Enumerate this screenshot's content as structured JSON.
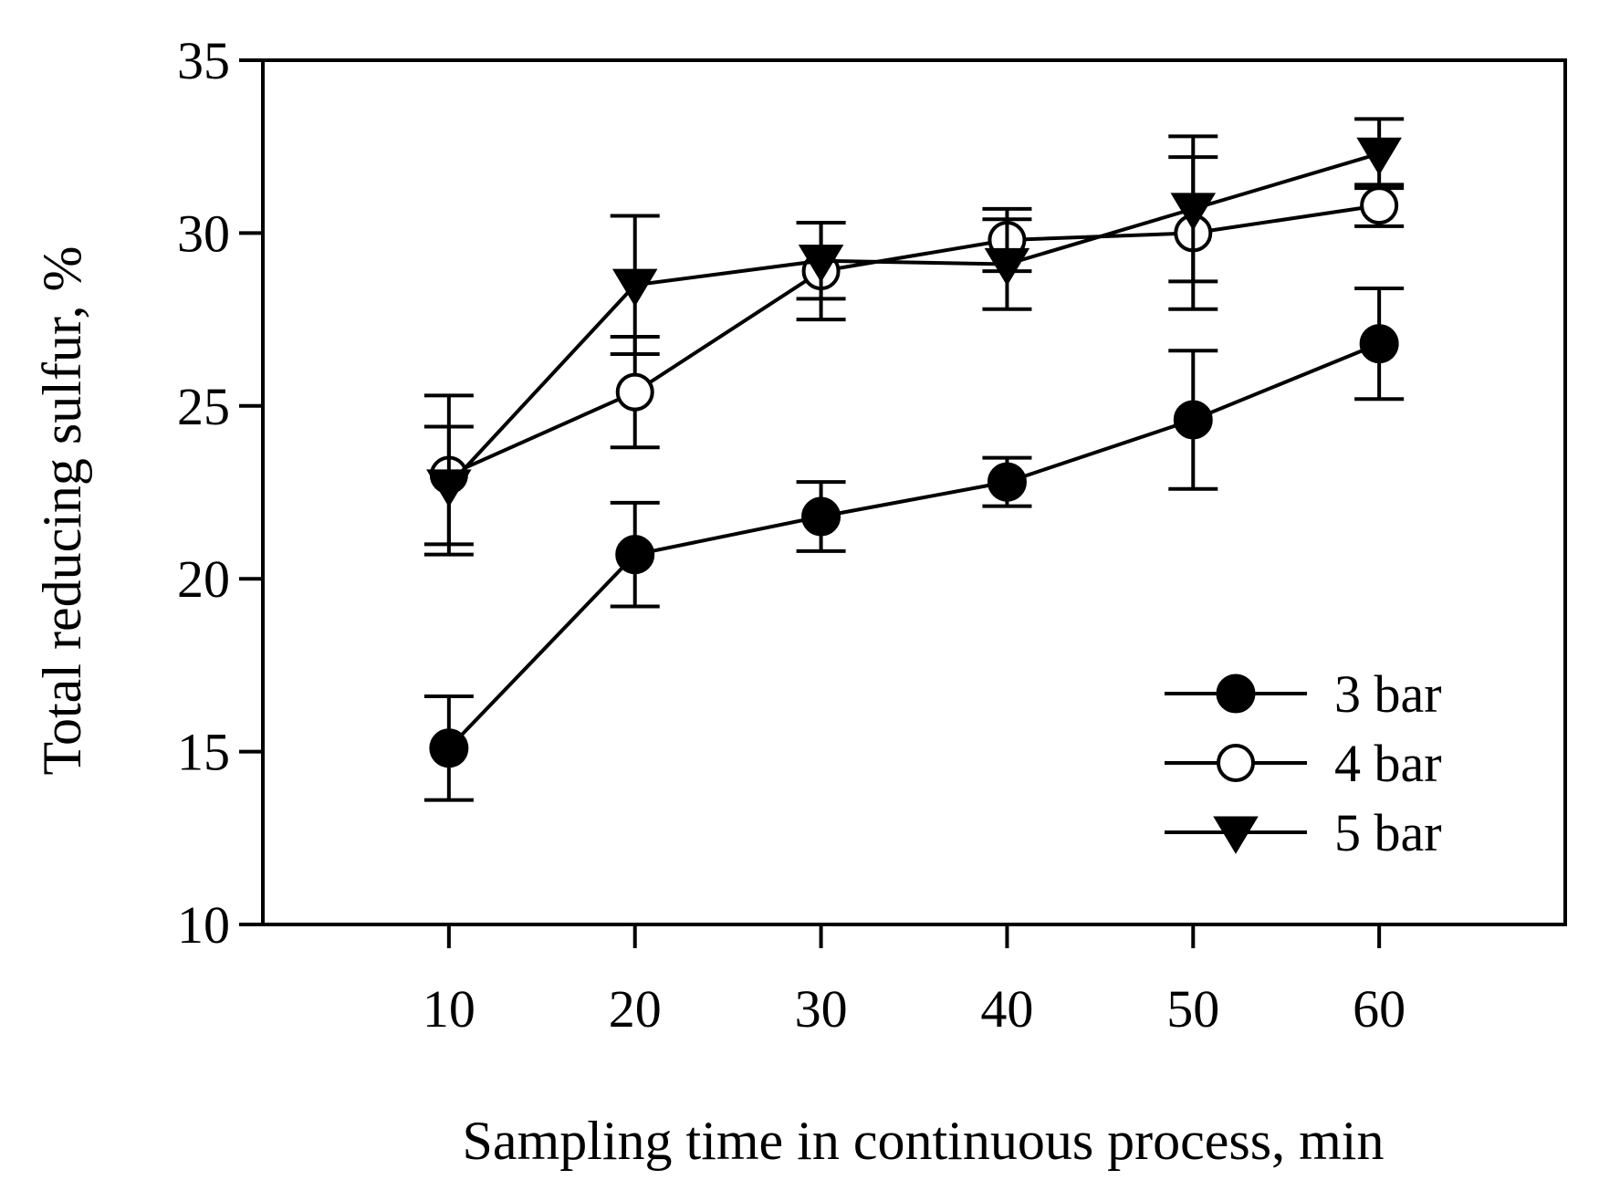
{
  "chart_data": {
    "type": "line",
    "title": "",
    "xlabel": "Sampling time in continuous process, min",
    "ylabel": "Total reducing sulfur, %",
    "x": [
      10,
      20,
      30,
      40,
      50,
      60
    ],
    "xlim": [
      0,
      70
    ],
    "ylim": [
      10,
      35
    ],
    "xticks": [
      10,
      20,
      30,
      40,
      50,
      60
    ],
    "yticks": [
      10,
      15,
      20,
      25,
      30,
      35
    ],
    "grid": false,
    "legend_position": "bottom-right",
    "series": [
      {
        "name": "3 bar",
        "marker": "filled-circle",
        "values": [
          15.1,
          20.7,
          21.8,
          22.8,
          24.6,
          26.8
        ],
        "errors": [
          1.5,
          1.5,
          1.0,
          0.7,
          2.0,
          1.6
        ]
      },
      {
        "name": "4 bar",
        "marker": "open-circle",
        "values": [
          23.0,
          25.4,
          28.9,
          29.8,
          30.0,
          30.8
        ],
        "errors": [
          2.3,
          1.6,
          1.4,
          0.9,
          2.2,
          0.6
        ]
      },
      {
        "name": "5 bar",
        "marker": "filled-triangle-down",
        "values": [
          22.7,
          28.5,
          29.2,
          29.1,
          30.7,
          32.3
        ],
        "errors": [
          1.7,
          2.0,
          1.1,
          1.3,
          2.1,
          1.0
        ]
      }
    ]
  }
}
